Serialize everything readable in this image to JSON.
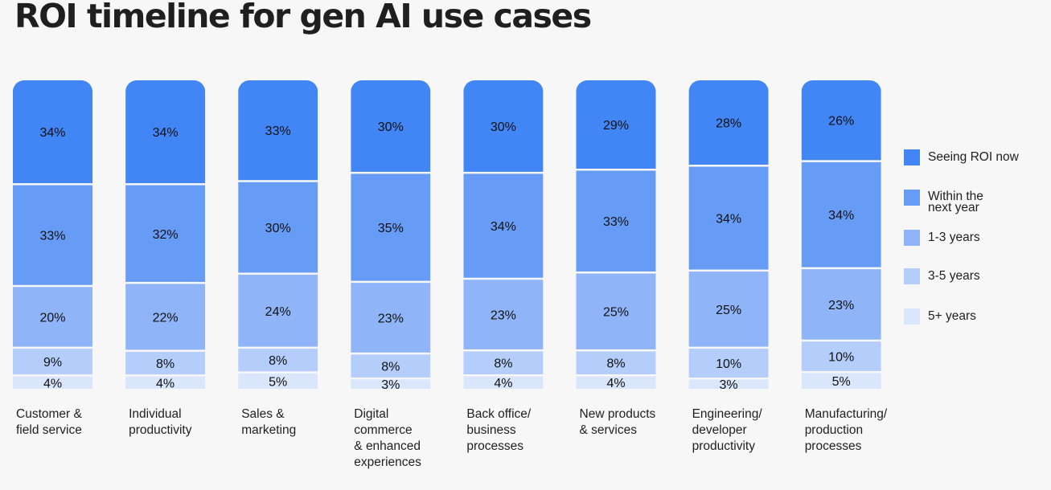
{
  "title": "ROI timeline for gen AI use cases",
  "colors": {
    "seeing_roi_now": "#4285f4",
    "within_next_year": "#679cf6",
    "one_to_three": "#8fb4f8",
    "three_to_five": "#b5cdfa",
    "five_plus": "#d9e6fc"
  },
  "chart_data": {
    "type": "bar",
    "stacked": true,
    "normalized": true,
    "categories": [
      "Customer &\nfield service",
      "Individual\nproductivity",
      "Sales &\nmarketing",
      "Digital\ncommerce\n& enhanced\nexperiences",
      "Back office/\nbusiness\nprocesses",
      "New products\n& services",
      "Engineering/\ndeveloper\nproductivity",
      "Manufacturing/\nproduction\nprocesses"
    ],
    "series": [
      {
        "name": "Seeing ROI now",
        "values": [
          34,
          34,
          33,
          30,
          30,
          29,
          28,
          26
        ]
      },
      {
        "name": "Within the\nnext year",
        "values": [
          33,
          32,
          30,
          35,
          34,
          33,
          34,
          34
        ]
      },
      {
        "name": "1-3 years",
        "values": [
          20,
          22,
          24,
          23,
          23,
          25,
          25,
          23
        ]
      },
      {
        "name": "3-5 years",
        "values": [
          9,
          8,
          8,
          8,
          8,
          8,
          10,
          10
        ]
      },
      {
        "name": "5+ years",
        "values": [
          4,
          4,
          5,
          3,
          4,
          4,
          3,
          5
        ]
      }
    ],
    "value_suffix": "%",
    "legend_position": "right",
    "grid": false
  }
}
